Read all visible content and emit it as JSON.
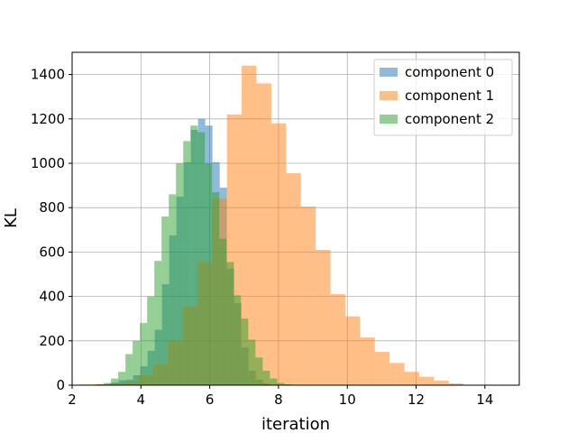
{
  "chart_data": {
    "type": "bar",
    "title": "",
    "xlabel": "iteration",
    "ylabel": "KL",
    "xlim": [
      2,
      15
    ],
    "ylim": [
      0,
      1500
    ],
    "xticks": [
      2,
      4,
      6,
      8,
      10,
      12,
      14
    ],
    "yticks": [
      0,
      200,
      400,
      600,
      800,
      1000,
      1200,
      1400
    ],
    "grid": true,
    "legend_position": "top-right",
    "series": [
      {
        "name": "component 0",
        "color": "#1f77b4",
        "opacity": 0.5,
        "bin_start": 2.72,
        "bin_width": 0.21,
        "values": [
          3,
          5,
          12,
          22,
          25,
          45,
          85,
          155,
          250,
          455,
          675,
          850,
          1005,
          1150,
          1200,
          1170,
          1005,
          890,
          525,
          370,
          170,
          65,
          25,
          8,
          3
        ]
      },
      {
        "name": "component 1",
        "color": "#ff7f0e",
        "opacity": 0.5,
        "bin_start": 2.2,
        "bin_width": 0.43,
        "values": [
          3,
          4,
          8,
          15,
          45,
          95,
          200,
          355,
          555,
          840,
          1220,
          1440,
          1360,
          1180,
          955,
          805,
          610,
          410,
          310,
          215,
          150,
          100,
          60,
          38,
          20,
          8
        ]
      },
      {
        "name": "component 2",
        "color": "#2ca02c",
        "opacity": 0.5,
        "bin_start": 2.5,
        "bin_width": 0.21,
        "values": [
          2,
          5,
          10,
          30,
          60,
          140,
          200,
          280,
          400,
          560,
          760,
          860,
          1000,
          1100,
          1170,
          1140,
          1000,
          870,
          660,
          555,
          405,
          300,
          205,
          125,
          65,
          30,
          10,
          4
        ]
      }
    ]
  }
}
